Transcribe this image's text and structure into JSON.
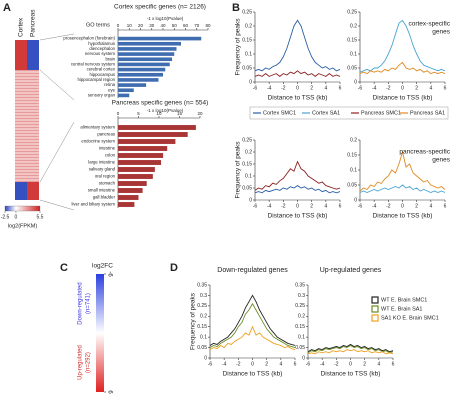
{
  "chart_data": [
    {
      "type": "heatmap",
      "panel": "A",
      "columns": [
        "Cortex",
        "Pancreas"
      ],
      "colorbar_label": "log2(FPKM)",
      "colorbar_lim": [
        -2.5,
        5.5
      ],
      "colorbar_ticks": [
        -2.5,
        0,
        5.5
      ]
    },
    {
      "type": "barh",
      "title": "Cortex specific genes (n= 2126)",
      "y_label": "GO terms",
      "x_label": "-1 x log10(Pvalue)",
      "color": "#3f6db0",
      "categories": [
        "prosencephalon (forebrain)",
        "hypothalamus",
        "diencephalon",
        "nervous system",
        "brain",
        "central nervous system",
        "cerebral cortex",
        "hippocampus",
        "hippocampal region",
        "retina",
        "eye",
        "sensory organ"
      ],
      "values": [
        74,
        56,
        52,
        50,
        48,
        46,
        42,
        40,
        36,
        25,
        14,
        10
      ],
      "xlim": [
        0,
        80
      ],
      "xticks": [
        0,
        10,
        20,
        30,
        40,
        50,
        60,
        70,
        80
      ]
    },
    {
      "type": "barh",
      "title": "Pancreas specific genes (n= 554)",
      "x_label": "-1 x log10(Pvalue)",
      "color": "#a83636",
      "categories": [
        "alimentary system",
        "pancreas",
        "endocrine system",
        "intestine",
        "colon",
        "large intestine",
        "salivary gland",
        "oral region",
        "stomach",
        "small intestine",
        "gall bladder",
        "liver and biliary system"
      ],
      "values": [
        19,
        17,
        14,
        12,
        11,
        10.5,
        9,
        8.5,
        7,
        6,
        5,
        4
      ],
      "xlim": [
        0,
        20
      ],
      "xticks": [
        0,
        5,
        10,
        15,
        20
      ]
    },
    {
      "type": "line",
      "panel": "B",
      "y_label": "Frequency of peaks",
      "x_label": "Distance to TSS (kb)",
      "x": [
        -6,
        -5.5,
        -5,
        -4.5,
        -4,
        -3.5,
        -3,
        -2.5,
        -2,
        -1.5,
        -1,
        -0.5,
        0,
        0.5,
        1,
        1.5,
        2,
        2.5,
        3,
        3.5,
        4,
        4.5,
        5,
        5.5,
        6
      ],
      "xlim": [
        -6,
        6
      ],
      "xticks": [
        -6,
        -4,
        -2,
        0,
        2,
        4,
        6
      ],
      "ylim": [
        0,
        0.25
      ],
      "yticks": [
        0,
        0.05,
        0.1,
        0.15,
        0.2,
        0.25
      ],
      "series": [
        {
          "name": "Cortex SMC1",
          "color": "#2a5ea8",
          "values": [
            0.04,
            0.045,
            0.04,
            0.05,
            0.045,
            0.055,
            0.06,
            0.07,
            0.09,
            0.12,
            0.16,
            0.2,
            0.22,
            0.2,
            0.16,
            0.12,
            0.09,
            0.07,
            0.06,
            0.05,
            0.055,
            0.045,
            0.05,
            0.04,
            0.045
          ]
        },
        {
          "name": "Pancreas SMC1",
          "color": "#8b2020",
          "values": [
            0.02,
            0.025,
            0.02,
            0.03,
            0.02,
            0.025,
            0.03,
            0.02,
            0.03,
            0.025,
            0.035,
            0.03,
            0.04,
            0.03,
            0.035,
            0.025,
            0.03,
            0.02,
            0.03,
            0.025,
            0.02,
            0.03,
            0.02,
            0.025,
            0.02
          ]
        }
      ]
    },
    {
      "type": "line",
      "x_label": "Distance to TSS (kb)",
      "annotation": [
        "cortex-specific",
        "genes"
      ],
      "x": [
        -6,
        -5.5,
        -5,
        -4.5,
        -4,
        -3.5,
        -3,
        -2.5,
        -2,
        -1.5,
        -1,
        -0.5,
        0,
        0.5,
        1,
        1.5,
        2,
        2.5,
        3,
        3.5,
        4,
        4.5,
        5,
        5.5,
        6
      ],
      "xlim": [
        -6,
        6
      ],
      "xticks": [
        -6,
        -4,
        -2,
        0,
        2,
        4,
        6
      ],
      "ylim": [
        0,
        0.25
      ],
      "yticks": [
        0,
        0.05,
        0.1,
        0.15,
        0.2,
        0.25
      ],
      "series": [
        {
          "name": "Cortex SA1",
          "color": "#4aa3d0",
          "values": [
            0.035,
            0.04,
            0.045,
            0.04,
            0.05,
            0.05,
            0.06,
            0.075,
            0.1,
            0.13,
            0.17,
            0.21,
            0.22,
            0.2,
            0.17,
            0.13,
            0.1,
            0.075,
            0.06,
            0.055,
            0.05,
            0.045,
            0.04,
            0.045,
            0.04
          ]
        },
        {
          "name": "Pancreas SA1",
          "color": "#e08a20",
          "values": [
            0.03,
            0.035,
            0.03,
            0.04,
            0.035,
            0.04,
            0.035,
            0.045,
            0.04,
            0.05,
            0.045,
            0.06,
            0.07,
            0.05,
            0.045,
            0.05,
            0.04,
            0.045,
            0.035,
            0.04,
            0.03,
            0.035,
            0.03,
            0.035,
            0.03
          ]
        }
      ]
    },
    {
      "type": "line",
      "y_label": "Frequency of peaks",
      "x_label": "Distance to TSS (kb)",
      "x": [
        -6,
        -5.5,
        -5,
        -4.5,
        -4,
        -3.5,
        -3,
        -2.5,
        -2,
        -1.5,
        -1,
        -0.5,
        0,
        0.5,
        1,
        1.5,
        2,
        2.5,
        3,
        3.5,
        4,
        4.5,
        5,
        5.5,
        6
      ],
      "xlim": [
        -6,
        6
      ],
      "xticks": [
        -6,
        -4,
        -2,
        0,
        2,
        4,
        6
      ],
      "ylim": [
        0,
        0.25
      ],
      "yticks": [
        0,
        0.05,
        0.1,
        0.15,
        0.2,
        0.25
      ],
      "series": [
        {
          "color": "#2a5ea8",
          "values": [
            0.03,
            0.035,
            0.03,
            0.04,
            0.035,
            0.04,
            0.045,
            0.04,
            0.05,
            0.045,
            0.055,
            0.05,
            0.06,
            0.05,
            0.055,
            0.045,
            0.05,
            0.04,
            0.045,
            0.035,
            0.04,
            0.03,
            0.035,
            0.03,
            0.035
          ]
        },
        {
          "color": "#8b2020",
          "values": [
            0.04,
            0.05,
            0.045,
            0.06,
            0.055,
            0.07,
            0.065,
            0.08,
            0.09,
            0.11,
            0.13,
            0.12,
            0.16,
            0.13,
            0.12,
            0.1,
            0.09,
            0.08,
            0.07,
            0.075,
            0.06,
            0.055,
            0.05,
            0.045,
            0.05
          ]
        }
      ]
    },
    {
      "type": "line",
      "x_label": "Distance to TSS (kb)",
      "annotation": [
        "pancreas-specific",
        "genes"
      ],
      "x": [
        -6,
        -5.5,
        -5,
        -4.5,
        -4,
        -3.5,
        -3,
        -2.5,
        -2,
        -1.5,
        -1,
        -0.5,
        0,
        0.5,
        1,
        1.5,
        2,
        2.5,
        3,
        3.5,
        4,
        4.5,
        5,
        5.5,
        6
      ],
      "xlim": [
        -6,
        6
      ],
      "xticks": [
        -6,
        -4,
        -2,
        0,
        2,
        4,
        6
      ],
      "ylim": [
        0,
        0.2
      ],
      "yticks": [
        0,
        0.05,
        0.1,
        0.15,
        0.2
      ],
      "series": [
        {
          "color": "#4aa3d0",
          "values": [
            0.025,
            0.03,
            0.025,
            0.03,
            0.035,
            0.03,
            0.035,
            0.04,
            0.035,
            0.04,
            0.045,
            0.04,
            0.05,
            0.04,
            0.045,
            0.035,
            0.04,
            0.03,
            0.035,
            0.03,
            0.025,
            0.03,
            0.025,
            0.03,
            0.025
          ]
        },
        {
          "color": "#e08a20",
          "values": [
            0.03,
            0.04,
            0.035,
            0.05,
            0.045,
            0.06,
            0.055,
            0.07,
            0.08,
            0.1,
            0.09,
            0.12,
            0.16,
            0.11,
            0.12,
            0.09,
            0.08,
            0.07,
            0.06,
            0.065,
            0.05,
            0.045,
            0.04,
            0.045,
            0.035
          ]
        }
      ]
    },
    {
      "type": "colorbar",
      "panel": "C",
      "title": "log2FC",
      "lim": [
        -6,
        6
      ],
      "ticks": [
        -6,
        6
      ],
      "groups": [
        {
          "name": "Down-regulated",
          "n": "(n=741)",
          "color": "#3a3ae0"
        },
        {
          "name": "Up-regulated",
          "n": "(n=292)",
          "color": "#d03030"
        }
      ]
    },
    {
      "type": "line",
      "panel": "D",
      "title": "Down-regulated genes",
      "y_label": "Frequency of peaks",
      "x_label": "Distance to TSS (kb)",
      "x": [
        -6,
        -5.5,
        -5,
        -4.5,
        -4,
        -3.5,
        -3,
        -2.5,
        -2,
        -1.5,
        -1,
        -0.5,
        0,
        0.5,
        1,
        1.5,
        2,
        2.5,
        3,
        3.5,
        4,
        4.5,
        5,
        5.5,
        6
      ],
      "xlim": [
        -6,
        6
      ],
      "xticks": [
        -6,
        -4,
        -2,
        0,
        2,
        4,
        6
      ],
      "ylim": [
        0,
        0.35
      ],
      "yticks": [
        0,
        0.05,
        0.1,
        0.15,
        0.2,
        0.25,
        0.3,
        0.35
      ],
      "series": [
        {
          "name": "WT E. Brain SMC1",
          "color": "#222222",
          "values": [
            0.06,
            0.07,
            0.065,
            0.08,
            0.09,
            0.1,
            0.12,
            0.14,
            0.17,
            0.2,
            0.24,
            0.27,
            0.3,
            0.27,
            0.23,
            0.2,
            0.17,
            0.14,
            0.12,
            0.1,
            0.09,
            0.08,
            0.07,
            0.065,
            0.06
          ]
        },
        {
          "name": "WT E. Brain SA1",
          "color": "#6b8e23",
          "values": [
            0.05,
            0.06,
            0.055,
            0.07,
            0.08,
            0.09,
            0.1,
            0.12,
            0.15,
            0.17,
            0.21,
            0.23,
            0.26,
            0.23,
            0.2,
            0.17,
            0.14,
            0.12,
            0.1,
            0.09,
            0.08,
            0.07,
            0.06,
            0.055,
            0.05
          ]
        },
        {
          "name": "SA1 KO E. Brain SMC1",
          "color": "#f0a020",
          "values": [
            0.04,
            0.05,
            0.045,
            0.06,
            0.05,
            0.07,
            0.065,
            0.08,
            0.09,
            0.1,
            0.12,
            0.11,
            0.15,
            0.11,
            0.12,
            0.1,
            0.09,
            0.08,
            0.07,
            0.065,
            0.06,
            0.05,
            0.055,
            0.045,
            0.04
          ]
        }
      ]
    },
    {
      "type": "line",
      "title": "Up-regulated genes",
      "x_label": "Distance to TSS (kb)",
      "x": [
        -6,
        -5.5,
        -5,
        -4.5,
        -4,
        -3.5,
        -3,
        -2.5,
        -2,
        -1.5,
        -1,
        -0.5,
        0,
        0.5,
        1,
        1.5,
        2,
        2.5,
        3,
        3.5,
        4,
        4.5,
        5,
        5.5,
        6
      ],
      "xlim": [
        -6,
        6
      ],
      "xticks": [
        -6,
        -4,
        -2,
        0,
        2,
        4,
        6
      ],
      "ylim": [
        0,
        0.35
      ],
      "yticks": [
        0,
        0.05,
        0.1,
        0.15,
        0.2,
        0.25,
        0.3,
        0.35
      ],
      "series": [
        {
          "color": "#222222",
          "values": [
            0.03,
            0.04,
            0.035,
            0.045,
            0.04,
            0.05,
            0.045,
            0.05,
            0.055,
            0.05,
            0.06,
            0.055,
            0.065,
            0.055,
            0.06,
            0.05,
            0.055,
            0.045,
            0.05,
            0.04,
            0.045,
            0.035,
            0.04,
            0.03,
            0.035
          ]
        },
        {
          "color": "#6b8e23",
          "values": [
            0.025,
            0.035,
            0.03,
            0.04,
            0.035,
            0.045,
            0.04,
            0.045,
            0.05,
            0.045,
            0.055,
            0.05,
            0.06,
            0.05,
            0.055,
            0.045,
            0.05,
            0.04,
            0.045,
            0.035,
            0.04,
            0.03,
            0.035,
            0.025,
            0.03
          ]
        },
        {
          "color": "#f0a020",
          "values": [
            0.02,
            0.025,
            0.02,
            0.03,
            0.025,
            0.03,
            0.025,
            0.035,
            0.03,
            0.035,
            0.03,
            0.04,
            0.035,
            0.04,
            0.03,
            0.035,
            0.03,
            0.035,
            0.025,
            0.03,
            0.025,
            0.03,
            0.02,
            0.025,
            0.02
          ]
        }
      ]
    }
  ]
}
